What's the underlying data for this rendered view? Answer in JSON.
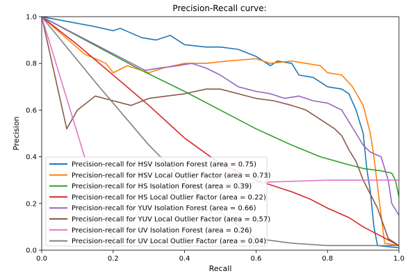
{
  "chart_data": {
    "type": "line",
    "title": "Precision-Recall curve:",
    "xlabel": "Recall",
    "ylabel": "Precision",
    "xlim": [
      0,
      1
    ],
    "ylim": [
      0,
      1
    ],
    "xticks": [
      "0.0",
      "0.2",
      "0.4",
      "0.6",
      "0.8",
      "1.0"
    ],
    "yticks": [
      "0.0",
      "0.2",
      "0.4",
      "0.6",
      "0.8",
      "1.0"
    ],
    "grid": false,
    "legend_position": "lower-left",
    "series": [
      {
        "name": "Precision-recall for HSV Isolation Forest (area = 0.75)",
        "color": "#1f77b4",
        "points": [
          [
            0,
            1.0
          ],
          [
            0.14,
            0.96
          ],
          [
            0.2,
            0.94
          ],
          [
            0.22,
            0.95
          ],
          [
            0.28,
            0.91
          ],
          [
            0.32,
            0.9
          ],
          [
            0.36,
            0.92
          ],
          [
            0.4,
            0.88
          ],
          [
            0.46,
            0.87
          ],
          [
            0.5,
            0.87
          ],
          [
            0.55,
            0.86
          ],
          [
            0.6,
            0.83
          ],
          [
            0.64,
            0.79
          ],
          [
            0.66,
            0.81
          ],
          [
            0.7,
            0.8
          ],
          [
            0.72,
            0.75
          ],
          [
            0.76,
            0.74
          ],
          [
            0.78,
            0.72
          ],
          [
            0.8,
            0.7
          ],
          [
            0.84,
            0.69
          ],
          [
            0.86,
            0.67
          ],
          [
            0.88,
            0.6
          ],
          [
            0.9,
            0.5
          ],
          [
            0.91,
            0.35
          ],
          [
            0.92,
            0.25
          ],
          [
            0.93,
            0.1
          ],
          [
            0.94,
            0.02
          ],
          [
            1.0,
            0.01
          ]
        ]
      },
      {
        "name": "Precision-recall for HSV Local Outlier Factor (area = 0.73)",
        "color": "#ff7f0e",
        "points": [
          [
            0,
            1.0
          ],
          [
            0.12,
            0.84
          ],
          [
            0.15,
            0.82
          ],
          [
            0.18,
            0.8
          ],
          [
            0.2,
            0.76
          ],
          [
            0.24,
            0.79
          ],
          [
            0.3,
            0.76
          ],
          [
            0.34,
            0.78
          ],
          [
            0.4,
            0.8
          ],
          [
            0.46,
            0.8
          ],
          [
            0.52,
            0.81
          ],
          [
            0.6,
            0.82
          ],
          [
            0.64,
            0.8
          ],
          [
            0.7,
            0.81
          ],
          [
            0.74,
            0.8
          ],
          [
            0.78,
            0.79
          ],
          [
            0.8,
            0.76
          ],
          [
            0.84,
            0.75
          ],
          [
            0.87,
            0.7
          ],
          [
            0.9,
            0.62
          ],
          [
            0.92,
            0.5
          ],
          [
            0.93,
            0.4
          ],
          [
            0.95,
            0.15
          ],
          [
            0.96,
            0.03
          ],
          [
            1.0,
            0.02
          ]
        ]
      },
      {
        "name": "Precision-recall for HS Isolation Forest (area = 0.39)",
        "color": "#2ca02c",
        "points": [
          [
            0,
            1.0
          ],
          [
            0.28,
            0.77
          ],
          [
            0.4,
            0.68
          ],
          [
            0.5,
            0.6
          ],
          [
            0.6,
            0.52
          ],
          [
            0.7,
            0.45
          ],
          [
            0.78,
            0.4
          ],
          [
            0.85,
            0.37
          ],
          [
            0.9,
            0.35
          ],
          [
            0.95,
            0.34
          ],
          [
            0.98,
            0.33
          ],
          [
            0.99,
            0.3
          ],
          [
            1.0,
            0.23
          ]
        ]
      },
      {
        "name": "Precision-recall for HS Local Outlier Factor (area = 0.22)",
        "color": "#d62728",
        "points": [
          [
            0,
            1.0
          ],
          [
            0.1,
            0.88
          ],
          [
            0.2,
            0.75
          ],
          [
            0.3,
            0.62
          ],
          [
            0.4,
            0.48
          ],
          [
            0.5,
            0.37
          ],
          [
            0.6,
            0.3
          ],
          [
            0.7,
            0.25
          ],
          [
            0.75,
            0.22
          ],
          [
            0.8,
            0.18
          ],
          [
            0.86,
            0.14
          ],
          [
            0.9,
            0.1
          ],
          [
            0.95,
            0.06
          ],
          [
            1.0,
            0.02
          ]
        ]
      },
      {
        "name": "Precision-recall for YUV Isolation Forest (area = 0.66)",
        "color": "#9467bd",
        "points": [
          [
            0,
            1.0
          ],
          [
            0.29,
            0.77
          ],
          [
            0.33,
            0.78
          ],
          [
            0.38,
            0.79
          ],
          [
            0.42,
            0.8
          ],
          [
            0.46,
            0.78
          ],
          [
            0.5,
            0.75
          ],
          [
            0.55,
            0.7
          ],
          [
            0.6,
            0.68
          ],
          [
            0.64,
            0.67
          ],
          [
            0.68,
            0.65
          ],
          [
            0.72,
            0.66
          ],
          [
            0.76,
            0.64
          ],
          [
            0.8,
            0.63
          ],
          [
            0.84,
            0.6
          ],
          [
            0.86,
            0.55
          ],
          [
            0.88,
            0.5
          ],
          [
            0.9,
            0.45
          ],
          [
            0.92,
            0.42
          ],
          [
            0.95,
            0.4
          ],
          [
            0.97,
            0.3
          ],
          [
            0.98,
            0.2
          ],
          [
            1.0,
            0.15
          ]
        ]
      },
      {
        "name": "Precision-recall for YUV Local Outlier Factor (area = 0.57)",
        "color": "#8c564b",
        "points": [
          [
            0,
            1.0
          ],
          [
            0.07,
            0.52
          ],
          [
            0.1,
            0.6
          ],
          [
            0.15,
            0.66
          ],
          [
            0.2,
            0.64
          ],
          [
            0.25,
            0.62
          ],
          [
            0.3,
            0.65
          ],
          [
            0.35,
            0.66
          ],
          [
            0.4,
            0.67
          ],
          [
            0.46,
            0.69
          ],
          [
            0.5,
            0.69
          ],
          [
            0.55,
            0.67
          ],
          [
            0.6,
            0.65
          ],
          [
            0.65,
            0.64
          ],
          [
            0.7,
            0.62
          ],
          [
            0.74,
            0.6
          ],
          [
            0.78,
            0.56
          ],
          [
            0.82,
            0.52
          ],
          [
            0.84,
            0.49
          ],
          [
            0.86,
            0.43
          ],
          [
            0.88,
            0.38
          ],
          [
            0.9,
            0.3
          ],
          [
            0.94,
            0.18
          ],
          [
            0.97,
            0.05
          ],
          [
            1.0,
            0.02
          ]
        ]
      },
      {
        "name": "Precision-recall for UV Isolation Forest (area = 0.26)",
        "color": "#e377c2",
        "points": [
          [
            0,
            1.0
          ],
          [
            0.12,
            0.4
          ],
          [
            0.16,
            0.2
          ],
          [
            0.2,
            0.05
          ],
          [
            0.3,
            0.2
          ],
          [
            0.4,
            0.27
          ],
          [
            0.6,
            0.29
          ],
          [
            0.8,
            0.3
          ],
          [
            0.9,
            0.3
          ],
          [
            1.0,
            0.3
          ]
        ]
      },
      {
        "name": "Precision-recall for UV Local Outlier Factor (area = 0.04)",
        "color": "#7f7f7f",
        "points": [
          [
            0,
            1.0
          ],
          [
            0.15,
            0.72
          ],
          [
            0.3,
            0.45
          ],
          [
            0.45,
            0.22
          ],
          [
            0.6,
            0.05
          ],
          [
            0.7,
            0.03
          ],
          [
            0.8,
            0.02
          ],
          [
            1.0,
            0.02
          ]
        ]
      }
    ]
  }
}
